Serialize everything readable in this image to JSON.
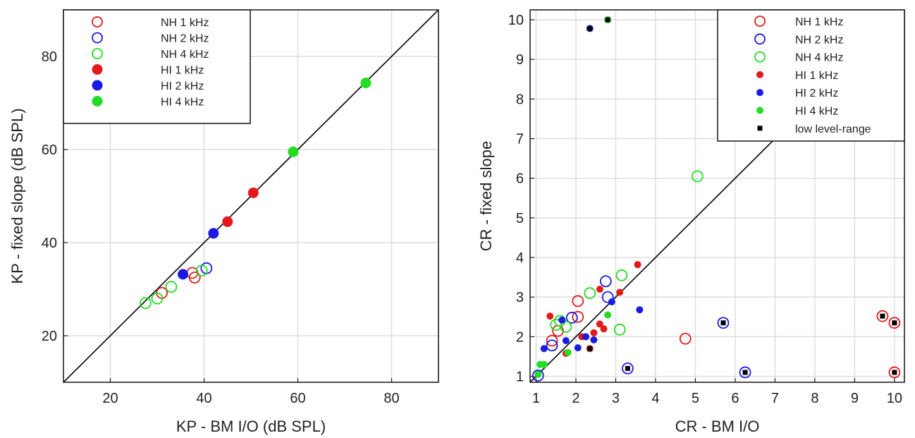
{
  "chart_data": [
    {
      "type": "scatter",
      "title": "",
      "xlabel": "KP - BM I/O (dB SPL)",
      "ylabel": "KP - fixed slope (dB SPL)",
      "xlim": [
        10,
        90
      ],
      "ylim": [
        10,
        90
      ],
      "xticks": [
        20,
        40,
        60,
        80
      ],
      "yticks": [
        20,
        40,
        60,
        80
      ],
      "grid": true,
      "identity_line": true,
      "legend_position": "top-left",
      "series": [
        {
          "name": "NH 1 kHz",
          "marker": "open",
          "color": "#e41a1a",
          "points": [
            [
              31,
              29.2
            ],
            [
              37.5,
              33.5
            ],
            [
              38,
              32.5
            ]
          ]
        },
        {
          "name": "NH 2 kHz",
          "marker": "open",
          "color": "#1a1ae4",
          "points": [
            [
              40.5,
              34.5
            ]
          ]
        },
        {
          "name": "NH 4 kHz",
          "marker": "open",
          "color": "#22dd22",
          "points": [
            [
              27.5,
              27
            ],
            [
              30,
              28
            ],
            [
              33,
              30.5
            ],
            [
              39.5,
              34
            ]
          ]
        },
        {
          "name": "HI 1 kHz",
          "marker": "filled",
          "color": "#e41a1a",
          "points": [
            [
              45,
              44.5
            ],
            [
              50.5,
              50.7
            ]
          ]
        },
        {
          "name": "HI 2 kHz",
          "marker": "filled",
          "color": "#1a1ae4",
          "points": [
            [
              35.5,
              33.2
            ],
            [
              42,
              42
            ]
          ]
        },
        {
          "name": "HI 4 kHz",
          "marker": "filled",
          "color": "#22dd22",
          "points": [
            [
              59,
              59.5
            ],
            [
              74.5,
              74.3
            ]
          ]
        }
      ]
    },
    {
      "type": "scatter",
      "title": "",
      "xlabel": "CR - BM I/O",
      "ylabel": "CR - fixed slope",
      "xlim": [
        0.85,
        10.25
      ],
      "ylim": [
        0.85,
        10.25
      ],
      "xticks": [
        1,
        2,
        3,
        4,
        5,
        6,
        7,
        8,
        9,
        10
      ],
      "yticks": [
        1,
        2,
        3,
        4,
        5,
        6,
        7,
        8,
        9,
        10
      ],
      "grid": true,
      "identity_line": true,
      "legend_position": "top-right",
      "series": [
        {
          "name": "NH 1 kHz",
          "marker": "open",
          "color": "#e41a1a",
          "points": [
            [
              1.4,
              1.9
            ],
            [
              1.55,
              2.15
            ],
            [
              2.05,
              2.9
            ],
            [
              2.05,
              2.5
            ],
            [
              4.75,
              1.95
            ],
            [
              9.7,
              2.52
            ],
            [
              10,
              2.35
            ],
            [
              10,
              1.1
            ]
          ]
        },
        {
          "name": "NH 2 kHz",
          "marker": "open",
          "color": "#1a1ae4",
          "points": [
            [
              1.05,
              1.02
            ],
            [
              1.4,
              1.78
            ],
            [
              1.9,
              2.48
            ],
            [
              2.75,
              3.4
            ],
            [
              2.8,
              3.0
            ],
            [
              3.3,
              1.2
            ],
            [
              5.7,
              2.35
            ],
            [
              6.25,
              1.1
            ]
          ]
        },
        {
          "name": "NH 4 kHz",
          "marker": "open",
          "color": "#22dd22",
          "points": [
            [
              1.5,
              2.3
            ],
            [
              1.6,
              2.4
            ],
            [
              2.35,
              3.1
            ],
            [
              3.15,
              3.55
            ],
            [
              3.1,
              2.18
            ],
            [
              5.05,
              6.05
            ],
            [
              1.75,
              2.25
            ]
          ]
        },
        {
          "name": "HI 1 kHz",
          "marker": "filled",
          "color": "#e41a1a",
          "points": [
            [
              1.35,
              2.52
            ],
            [
              1.75,
              1.58
            ],
            [
              2.15,
              2.0
            ],
            [
              2.45,
              2.1
            ],
            [
              2.6,
              2.32
            ],
            [
              2.7,
              2.2
            ],
            [
              2.6,
              3.2
            ],
            [
              3.1,
              3.12
            ],
            [
              3.55,
              3.82
            ],
            [
              2.35,
              1.7
            ]
          ]
        },
        {
          "name": "HI 2 kHz",
          "marker": "filled",
          "color": "#1a1ae4",
          "points": [
            [
              1.2,
              1.7
            ],
            [
              1.65,
              2.42
            ],
            [
              1.75,
              1.9
            ],
            [
              2.05,
              1.72
            ],
            [
              2.25,
              2.0
            ],
            [
              2.45,
              1.92
            ],
            [
              2.9,
              2.88
            ],
            [
              3.6,
              2.68
            ],
            [
              2.35,
              9.78
            ]
          ]
        },
        {
          "name": "HI 4 kHz",
          "marker": "filled",
          "color": "#22dd22",
          "points": [
            [
              1.05,
              1.05
            ],
            [
              1.1,
              1.3
            ],
            [
              1.2,
              1.3
            ],
            [
              1.8,
              1.6
            ],
            [
              2.8,
              2.55
            ],
            [
              2.8,
              10.0
            ]
          ]
        },
        {
          "name": "low level-range",
          "marker": "small-square",
          "color": "#000000",
          "points": [
            [
              2.35,
              9.78
            ],
            [
              2.8,
              10.0
            ],
            [
              2.35,
              1.7
            ],
            [
              3.3,
              1.2
            ],
            [
              5.7,
              2.35
            ],
            [
              6.25,
              1.1
            ],
            [
              9.7,
              2.52
            ],
            [
              10,
              2.35
            ],
            [
              10,
              1.1
            ]
          ]
        }
      ]
    }
  ]
}
